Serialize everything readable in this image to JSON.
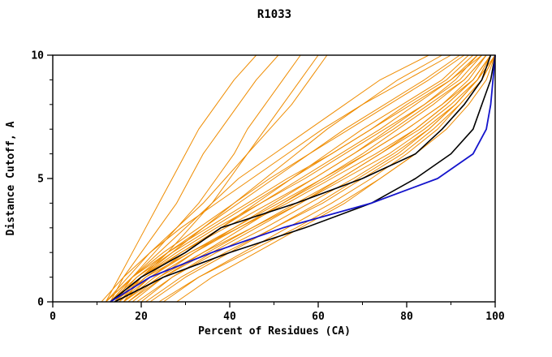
{
  "chart_data": {
    "type": "line",
    "title": "R1033",
    "xlabel": "Percent of Residues (CA)",
    "ylabel": "Distance Cutoff, A",
    "xlim": [
      0,
      100
    ],
    "ylim": [
      0,
      10
    ],
    "x_ticks": [
      0,
      20,
      40,
      60,
      80,
      100
    ],
    "x_minor_step": 10,
    "y_ticks": [
      0,
      5,
      10
    ],
    "y_minor_step": 1,
    "grid": false,
    "legend": "none",
    "y_levels": [
      0,
      1,
      2,
      3,
      4,
      5,
      6,
      7,
      8,
      9,
      10
    ],
    "colors": {
      "orange": "#ef8c00",
      "black": "#000000",
      "blue": "#1414cc"
    },
    "groups": [
      {
        "name": "prediction-curves",
        "color_key": "orange",
        "stroke_width": 1,
        "series": [
          [
            12,
            15,
            18,
            21,
            24,
            27,
            30,
            33,
            37,
            41,
            46
          ],
          [
            13,
            16,
            20,
            24,
            28,
            31,
            34,
            38,
            42,
            46,
            51
          ],
          [
            14,
            18,
            23,
            28,
            33,
            37,
            41,
            44,
            48,
            52,
            56
          ],
          [
            16,
            20,
            26,
            31,
            36,
            40,
            44,
            48,
            52,
            56,
            60
          ],
          [
            12,
            17,
            22,
            28,
            34,
            39,
            44,
            49,
            54,
            58,
            62
          ],
          [
            13,
            18,
            24,
            30,
            36,
            42,
            50,
            58,
            66,
            74,
            85
          ],
          [
            15,
            20,
            27,
            34,
            41,
            48,
            55,
            62,
            70,
            78,
            88
          ],
          [
            11,
            16,
            22,
            29,
            37,
            45,
            53,
            61,
            70,
            80,
            90
          ],
          [
            14,
            19,
            26,
            34,
            42,
            50,
            58,
            66,
            75,
            84,
            92
          ],
          [
            12,
            18,
            25,
            33,
            41,
            49,
            58,
            67,
            76,
            85,
            93
          ],
          [
            16,
            22,
            30,
            38,
            46,
            54,
            62,
            70,
            79,
            88,
            94
          ],
          [
            13,
            19,
            27,
            36,
            45,
            54,
            63,
            72,
            80,
            89,
            95
          ],
          [
            15,
            21,
            29,
            38,
            47,
            56,
            65,
            74,
            82,
            90,
            96
          ],
          [
            17,
            24,
            32,
            41,
            50,
            59,
            68,
            76,
            84,
            91,
            96
          ],
          [
            12,
            18,
            26,
            35,
            44,
            53,
            63,
            72,
            81,
            90,
            97
          ],
          [
            14,
            20,
            28,
            37,
            47,
            57,
            66,
            75,
            84,
            92,
            97
          ],
          [
            18,
            25,
            34,
            43,
            52,
            61,
            70,
            78,
            86,
            93,
            98
          ],
          [
            13,
            20,
            29,
            39,
            49,
            59,
            68,
            77,
            85,
            93,
            98
          ],
          [
            16,
            23,
            32,
            42,
            52,
            62,
            71,
            80,
            88,
            94,
            98
          ],
          [
            20,
            27,
            36,
            46,
            56,
            65,
            74,
            82,
            89,
            95,
            99
          ],
          [
            15,
            22,
            31,
            41,
            51,
            61,
            71,
            80,
            88,
            95,
            99
          ],
          [
            17,
            25,
            35,
            45,
            55,
            65,
            74,
            83,
            90,
            96,
            99
          ],
          [
            22,
            30,
            40,
            50,
            60,
            69,
            78,
            85,
            91,
            96,
            99
          ],
          [
            14,
            21,
            31,
            42,
            53,
            63,
            73,
            82,
            89,
            95,
            99
          ],
          [
            19,
            27,
            37,
            48,
            58,
            68,
            77,
            85,
            91,
            96,
            100
          ],
          [
            25,
            33,
            43,
            53,
            63,
            72,
            80,
            87,
            92,
            97,
            100
          ],
          [
            16,
            24,
            34,
            45,
            56,
            66,
            76,
            84,
            91,
            96,
            100
          ],
          [
            28,
            36,
            46,
            56,
            66,
            74,
            82,
            88,
            93,
            97,
            100
          ],
          [
            21,
            29,
            39,
            50,
            61,
            70,
            79,
            86,
            92,
            97,
            100
          ],
          [
            24,
            33,
            44,
            55,
            65,
            74,
            82,
            89,
            94,
            98,
            100
          ]
        ]
      },
      {
        "name": "reference-black-curves",
        "color_key": "black",
        "stroke_width": 1.6,
        "series": [
          [
            13,
            20,
            30,
            38,
            55,
            70,
            82,
            88,
            93,
            97,
            99
          ],
          [
            14,
            25,
            40,
            57,
            72,
            82,
            90,
            95,
            97,
            99,
            100
          ]
        ]
      },
      {
        "name": "reference-blue-curve",
        "color_key": "blue",
        "stroke_width": 1.8,
        "series": [
          [
            13,
            22,
            36,
            52,
            72,
            87,
            95,
            98,
            99,
            99.5,
            100
          ]
        ]
      }
    ]
  }
}
